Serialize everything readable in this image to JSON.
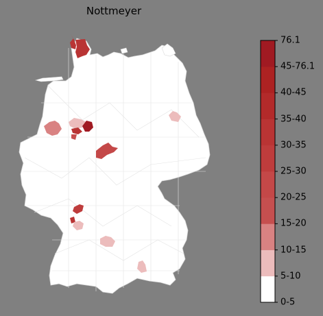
{
  "map": {
    "title": "Nottmeyer",
    "background_color": "#808080",
    "land_color": "#ffffff",
    "border_color": "#d9d9d9",
    "highlighted_regions": [
      {
        "name": "Nordfriesland",
        "bin": "35-40"
      },
      {
        "name": "Schleswig-Flensburg",
        "bin": "35-40"
      },
      {
        "name": "Steinfurt",
        "bin": "15-20"
      },
      {
        "name": "Minden-Lübbecke",
        "bin": "5-10"
      },
      {
        "name": "Herford",
        "bin": "35-40"
      },
      {
        "name": "Lippe",
        "bin": "45-76.1"
      },
      {
        "name": "Höxter",
        "bin": "15-20"
      },
      {
        "name": "Landkreis Kassel",
        "bin": "20-25"
      },
      {
        "name": "Dahme-Spreewald",
        "bin": "5-10"
      },
      {
        "name": "Karlsruhe",
        "bin": "30-35"
      },
      {
        "name": "Rastatt",
        "bin": "35-40"
      },
      {
        "name": "Pforzheim / Enzkreis",
        "bin": "5-10"
      },
      {
        "name": "Alb-Donau-Kreis",
        "bin": "5-10"
      },
      {
        "name": "Rosenheim",
        "bin": "10-15"
      }
    ]
  },
  "colorbar": {
    "boundaries": [
      "0-5",
      "5-10",
      "10-15",
      "15-20",
      "20-25",
      "25-30",
      "30-35",
      "35-40",
      "40-45",
      "45-76.1",
      "76.1"
    ],
    "segment_colors": [
      "#ffffff",
      "#ecbcbc",
      "#d98282",
      "#c64f4f",
      "#c44848",
      "#be3c3c",
      "#b93434",
      "#b32a2a",
      "#ad2222",
      "#a01a22"
    ]
  }
}
